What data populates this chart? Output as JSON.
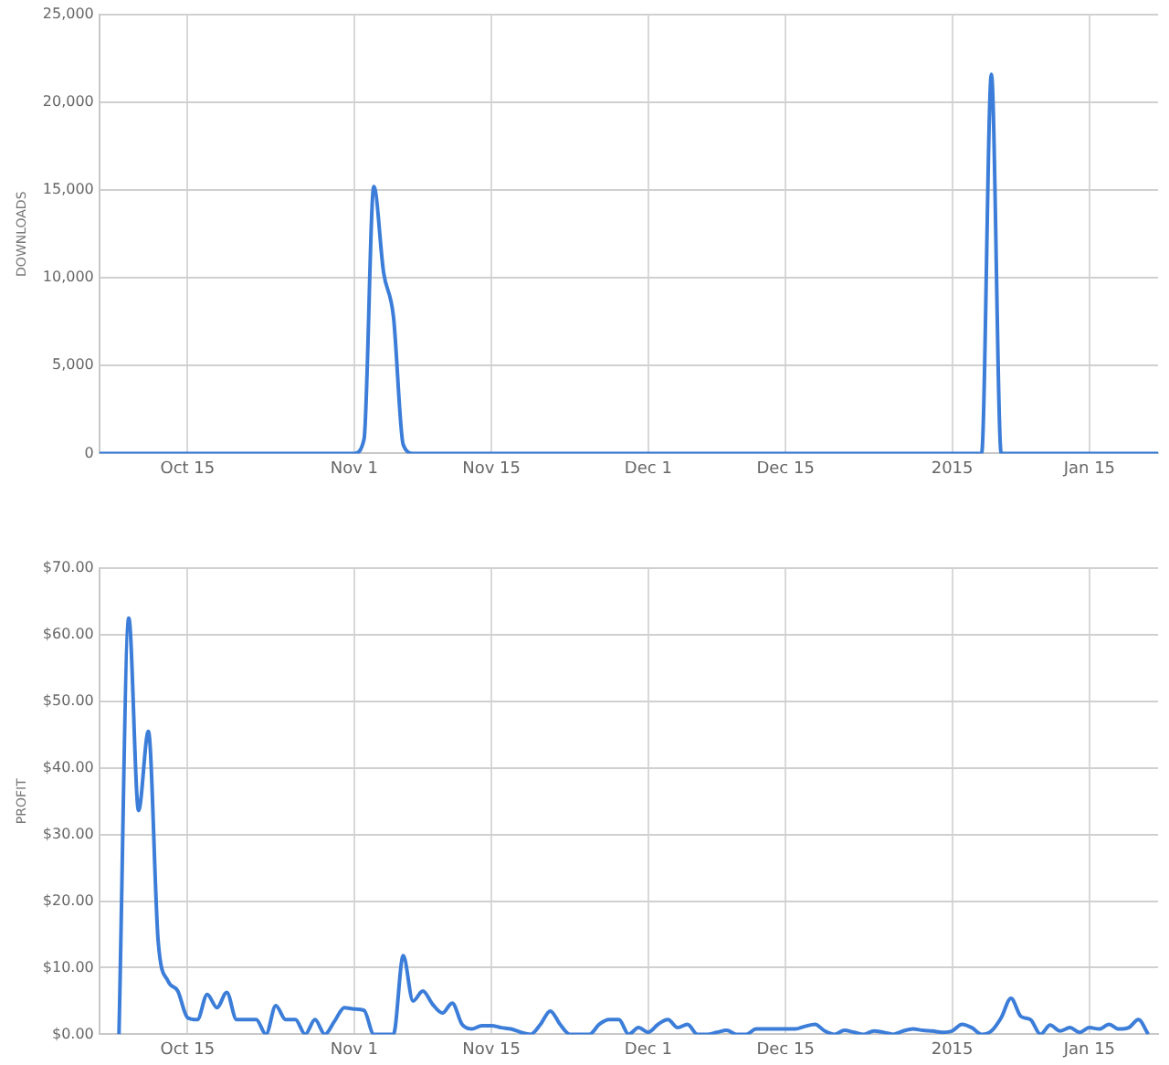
{
  "chart_data": [
    {
      "type": "line",
      "ylabel": "DOWNLOADS",
      "marker": "none",
      "grid": true,
      "xlim": [
        "2014-10-06",
        "2015-01-22"
      ],
      "xticks": [
        {
          "value": "2014-10-15",
          "label": "Oct 15"
        },
        {
          "value": "2014-11-01",
          "label": "Nov 1"
        },
        {
          "value": "2014-11-15",
          "label": "Nov 15"
        },
        {
          "value": "2014-12-01",
          "label": "Dec 1"
        },
        {
          "value": "2014-12-15",
          "label": "Dec 15"
        },
        {
          "value": "2015-01-01",
          "label": "2015"
        },
        {
          "value": "2015-01-15",
          "label": "Jan 15"
        }
      ],
      "ylim": [
        0,
        25000
      ],
      "yticks": [
        {
          "value": 0,
          "label": "0"
        },
        {
          "value": 5000,
          "label": "5,000"
        },
        {
          "value": 10000,
          "label": "10,000"
        },
        {
          "value": 15000,
          "label": "15,000"
        },
        {
          "value": 20000,
          "label": "20,000"
        },
        {
          "value": 25000,
          "label": "25,000"
        }
      ],
      "series": [
        {
          "color": "#3b7dd8",
          "x": [
            "2014-10-06",
            "2014-11-01",
            "2014-11-02",
            "2014-11-03",
            "2014-11-04",
            "2014-11-05",
            "2014-11-06",
            "2014-11-07",
            "2015-01-04",
            "2015-01-05",
            "2015-01-06",
            "2015-01-22"
          ],
          "values": [
            0,
            0,
            800,
            15200,
            10300,
            7800,
            500,
            0,
            0,
            21600,
            0,
            0
          ]
        }
      ]
    },
    {
      "type": "line",
      "ylabel": "PROFIT",
      "marker": "none",
      "grid": true,
      "xlim": [
        "2014-10-06",
        "2015-01-22"
      ],
      "xticks": [
        {
          "value": "2014-10-15",
          "label": "Oct 15"
        },
        {
          "value": "2014-11-01",
          "label": "Nov 1"
        },
        {
          "value": "2014-11-15",
          "label": "Nov 15"
        },
        {
          "value": "2014-12-01",
          "label": "Dec 1"
        },
        {
          "value": "2014-12-15",
          "label": "Dec 15"
        },
        {
          "value": "2015-01-01",
          "label": "2015"
        },
        {
          "value": "2015-01-15",
          "label": "Jan 15"
        }
      ],
      "ylim": [
        0,
        70
      ],
      "yticks": [
        {
          "value": 0,
          "label": "$0.00"
        },
        {
          "value": 10,
          "label": "$10.00"
        },
        {
          "value": 20,
          "label": "$20.00"
        },
        {
          "value": 30,
          "label": "$30.00"
        },
        {
          "value": 40,
          "label": "$40.00"
        },
        {
          "value": 50,
          "label": "$50.00"
        },
        {
          "value": 60,
          "label": "$60.00"
        },
        {
          "value": 70,
          "label": "$70.00"
        }
      ],
      "series": [
        {
          "color": "#3b7dd8",
          "x": [
            "2014-10-08",
            "2014-10-09",
            "2014-10-10",
            "2014-10-11",
            "2014-10-12",
            "2014-10-13",
            "2014-10-14",
            "2014-10-15",
            "2014-10-16",
            "2014-10-17",
            "2014-10-18",
            "2014-10-19",
            "2014-10-20",
            "2014-10-21",
            "2014-10-22",
            "2014-10-23",
            "2014-10-24",
            "2014-10-25",
            "2014-10-26",
            "2014-10-27",
            "2014-10-28",
            "2014-10-29",
            "2014-10-30",
            "2014-10-31",
            "2014-11-01",
            "2014-11-02",
            "2014-11-03",
            "2014-11-04",
            "2014-11-05",
            "2014-11-06",
            "2014-11-07",
            "2014-11-08",
            "2014-11-09",
            "2014-11-10",
            "2014-11-11",
            "2014-11-12",
            "2014-11-13",
            "2014-11-14",
            "2014-11-15",
            "2014-11-16",
            "2014-11-17",
            "2014-11-18",
            "2014-11-19",
            "2014-11-20",
            "2014-11-21",
            "2014-11-22",
            "2014-11-23",
            "2014-11-24",
            "2014-11-25",
            "2014-11-26",
            "2014-11-27",
            "2014-11-28",
            "2014-11-29",
            "2014-11-30",
            "2014-12-01",
            "2014-12-02",
            "2014-12-03",
            "2014-12-04",
            "2014-12-05",
            "2014-12-06",
            "2014-12-07",
            "2014-12-08",
            "2014-12-09",
            "2014-12-10",
            "2014-12-11",
            "2014-12-12",
            "2014-12-13",
            "2014-12-14",
            "2014-12-15",
            "2014-12-16",
            "2014-12-17",
            "2014-12-18",
            "2014-12-19",
            "2014-12-20",
            "2014-12-21",
            "2014-12-22",
            "2014-12-23",
            "2014-12-24",
            "2014-12-25",
            "2014-12-26",
            "2014-12-27",
            "2014-12-28",
            "2014-12-29",
            "2014-12-30",
            "2014-12-31",
            "2015-01-01",
            "2015-01-02",
            "2015-01-03",
            "2015-01-04",
            "2015-01-05",
            "2015-01-06",
            "2015-01-07",
            "2015-01-08",
            "2015-01-09",
            "2015-01-10",
            "2015-01-11",
            "2015-01-12",
            "2015-01-13",
            "2015-01-14",
            "2015-01-15",
            "2015-01-16",
            "2015-01-17",
            "2015-01-18",
            "2015-01-19",
            "2015-01-20",
            "2015-01-21"
          ],
          "values": [
            0,
            62.5,
            33.6,
            45.5,
            14,
            8,
            6.5,
            2.5,
            2.2,
            6,
            4,
            6.3,
            2.2,
            2.2,
            2.2,
            0,
            4.3,
            2.2,
            2.2,
            0,
            2.2,
            0,
            2,
            4,
            3.8,
            3.6,
            0,
            0,
            0,
            11.8,
            5,
            6.5,
            4.5,
            3.2,
            4.7,
            1.5,
            0.8,
            1.3,
            1.3,
            1,
            0.8,
            0.3,
            0,
            1.5,
            3.5,
            1.5,
            0,
            0,
            0,
            1.5,
            2.2,
            2.2,
            0,
            1,
            0.3,
            1.5,
            2.2,
            1,
            1.5,
            0,
            0,
            0.3,
            0.6,
            0,
            0,
            0.8,
            0.8,
            0.8,
            0.8,
            0.8,
            1.2,
            1.5,
            0.5,
            0,
            0.6,
            0.3,
            0,
            0.5,
            0.3,
            0,
            0.5,
            0.8,
            0.6,
            0.5,
            0.3,
            0.5,
            1.5,
            1,
            0,
            0.5,
            2.5,
            5.4,
            2.7,
            2.2,
            0,
            1.4,
            0.5,
            1,
            0.3,
            1,
            0.8,
            1.5,
            0.8,
            1,
            2.2,
            0
          ]
        }
      ]
    }
  ]
}
